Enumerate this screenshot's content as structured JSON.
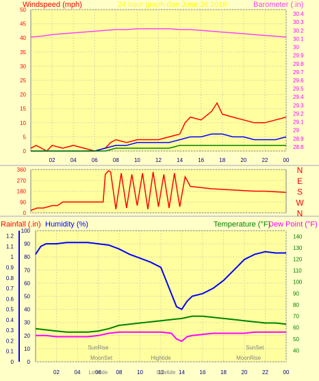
{
  "chart_data": [
    {
      "type": "line",
      "title": "24 hour graph dae  June 26 2018",
      "left_axis_label": "Windspeed (mph)",
      "right_axis_label": "Barometer (.in)",
      "x_ticks": [
        "02",
        "04",
        "06",
        "08",
        "10",
        "12",
        "14",
        "16",
        "18",
        "20",
        "22",
        "00"
      ],
      "left_ticks": [
        "0",
        "5",
        "10",
        "15",
        "20",
        "25",
        "30",
        "35",
        "40",
        "45",
        "50"
      ],
      "right_ticks": [
        "28.8",
        "28.9",
        "29",
        "29.1",
        "29.2",
        "29.3",
        "29.4",
        "29.5",
        "29.6",
        "29.7",
        "29.8",
        "29.9",
        "30",
        "30.1",
        "30.2",
        "30.3",
        "30.4"
      ],
      "left_range": [
        0,
        50
      ],
      "right_range": [
        28.75,
        30.45
      ],
      "grid": true,
      "series": [
        {
          "color": "#ff40ff",
          "axis": "right",
          "x": [
            0,
            1,
            2,
            3,
            4,
            5,
            6,
            7,
            8,
            9,
            10,
            11,
            12,
            13,
            14,
            15,
            16,
            17,
            18,
            19,
            20,
            21,
            22,
            23,
            24
          ],
          "y": [
            30.12,
            30.13,
            30.15,
            30.16,
            30.17,
            30.18,
            30.19,
            30.2,
            30.21,
            30.21,
            30.22,
            30.22,
            30.22,
            30.22,
            30.21,
            30.21,
            30.2,
            30.19,
            30.18,
            30.17,
            30.16,
            30.15,
            30.14,
            30.13,
            30.12
          ]
        },
        {
          "color": "#ff0000",
          "axis": "left",
          "x": [
            0,
            0.5,
            1,
            1.5,
            2,
            3,
            4,
            5,
            6,
            7,
            7.5,
            8,
            9,
            10,
            11,
            12,
            13,
            14,
            14.5,
            15,
            16,
            17,
            17.5,
            18,
            19,
            20,
            21,
            22,
            23,
            24
          ],
          "y": [
            1,
            2,
            1,
            0,
            2,
            1,
            2,
            1,
            0,
            1,
            3,
            4,
            3,
            4,
            4,
            4,
            5,
            6,
            10,
            12,
            11,
            14,
            17,
            13,
            12,
            11,
            10,
            10,
            11,
            12
          ]
        },
        {
          "color": "#0000ff",
          "axis": "left",
          "x": [
            0,
            1,
            2,
            3,
            4,
            5,
            6,
            7,
            8,
            9,
            10,
            11,
            12,
            13,
            14,
            15,
            16,
            17,
            18,
            19,
            20,
            21,
            22,
            23,
            24
          ],
          "y": [
            0,
            0,
            0,
            0,
            0,
            0,
            0,
            1,
            2,
            2,
            3,
            3,
            3,
            3,
            4,
            5,
            5,
            6,
            6,
            5,
            5,
            4,
            4,
            4,
            5
          ]
        },
        {
          "color": "#008000",
          "axis": "left",
          "x": [
            0,
            1,
            2,
            3,
            4,
            5,
            6,
            7,
            8,
            9,
            10,
            11,
            12,
            13,
            14,
            15,
            16,
            17,
            18,
            19,
            20,
            21,
            22,
            23,
            24
          ],
          "y": [
            0,
            0,
            0,
            0,
            0,
            0,
            0,
            0,
            1,
            1,
            1,
            1,
            1,
            1,
            2,
            2,
            2,
            2,
            2,
            2,
            2,
            2,
            2,
            2,
            2
          ]
        }
      ]
    },
    {
      "type": "line",
      "left_ticks": [
        "0",
        "90",
        "180",
        "270",
        "360"
      ],
      "right_ticks": [
        "N",
        "W",
        "S",
        "E",
        "N"
      ],
      "left_range": [
        0,
        360
      ],
      "grid": true,
      "series": [
        {
          "color": "#ff0000",
          "x": [
            0,
            0.6,
            1.2,
            2,
            2.5,
            3,
            4,
            5,
            6,
            6.8,
            7,
            7.3,
            7.5,
            8,
            8.5,
            9,
            9.5,
            10,
            10.5,
            11,
            11.5,
            12,
            12.5,
            13,
            13.5,
            14,
            14.5,
            15,
            16,
            17,
            18,
            19,
            20,
            21,
            22,
            23,
            24
          ],
          "y": [
            20,
            40,
            40,
            60,
            60,
            90,
            90,
            90,
            90,
            90,
            320,
            350,
            340,
            30,
            330,
            40,
            320,
            60,
            330,
            30,
            340,
            50,
            320,
            40,
            330,
            50,
            300,
            220,
            210,
            200,
            195,
            190,
            185,
            180,
            180,
            175,
            170
          ]
        }
      ]
    },
    {
      "type": "line",
      "left_axis_label_1": "Rainfall (.in)",
      "left_axis_label_2": "Humidity (%)",
      "right_axis_label_1": "Temperature (°F)",
      "right_axis_label_2": "Dew Point (°F)",
      "x_ticks": [
        "02",
        "04",
        "06",
        "08",
        "10",
        "12",
        "14",
        "16",
        "18",
        "20",
        "22",
        "00"
      ],
      "rain_ticks": [
        "0",
        "0.1",
        "0.2",
        "0.3",
        "0.4",
        "0.5",
        "0.6",
        "0.7",
        "0.8",
        "0.9",
        "1",
        "1.1",
        "1.2"
      ],
      "hum_ticks": [
        "0",
        "10",
        "20",
        "30",
        "40",
        "50",
        "60",
        "70",
        "80",
        "90",
        "100"
      ],
      "temp_ticks": [
        "40",
        "50",
        "60",
        "70",
        "80",
        "90",
        "100",
        "110",
        "120",
        "130",
        "140"
      ],
      "hum_range": [
        0,
        100
      ],
      "temp_range": [
        30,
        145
      ],
      "grid": true,
      "series": [
        {
          "color": "#0000ff",
          "axis": "humidity",
          "x": [
            0,
            0.5,
            1,
            2,
            3,
            4,
            5,
            6,
            7,
            8,
            9,
            10,
            11,
            12,
            13,
            13.5,
            14,
            14.5,
            15,
            16,
            17,
            18,
            19,
            20,
            21,
            22,
            23,
            24
          ],
          "y": [
            82,
            88,
            90,
            90,
            91,
            91,
            91,
            90,
            89,
            86,
            82,
            79,
            76,
            72,
            52,
            42,
            40,
            46,
            50,
            52,
            56,
            62,
            70,
            78,
            82,
            84,
            83,
            83
          ]
        },
        {
          "color": "#008000",
          "axis": "temperature",
          "x": [
            0,
            1,
            2,
            3,
            4,
            5,
            6,
            7,
            8,
            9,
            10,
            11,
            12,
            13,
            14,
            15,
            16,
            17,
            18,
            19,
            20,
            21,
            22,
            23,
            24
          ],
          "y": [
            59,
            58,
            57,
            56,
            56,
            56,
            57,
            59,
            62,
            63,
            64,
            65,
            66,
            67,
            68,
            70,
            70,
            69,
            68,
            67,
            66,
            65,
            64,
            64,
            63
          ]
        },
        {
          "color": "#ff00ff",
          "axis": "temperature",
          "x": [
            0,
            1,
            2,
            3,
            4,
            5,
            6,
            7,
            8,
            9,
            10,
            11,
            12,
            13,
            13.5,
            14,
            14.5,
            15,
            16,
            17,
            18,
            19,
            20,
            21,
            22,
            23,
            24
          ],
          "y": [
            53,
            53,
            52,
            52,
            52,
            52,
            53,
            55,
            56,
            56,
            56,
            56,
            56,
            55,
            50,
            48,
            52,
            53,
            54,
            55,
            55,
            55,
            55,
            56,
            56,
            56,
            56
          ]
        }
      ],
      "markers": [
        {
          "label": "SunRise",
          "hour": 6.0,
          "row": "upper"
        },
        {
          "label": "SunSet",
          "hour": 21.0,
          "row": "upper"
        },
        {
          "label": "MoonSet",
          "hour": 6.3,
          "row": "middle"
        },
        {
          "label": "Hightide",
          "hour": 12.0,
          "row": "middle"
        },
        {
          "label": "MoonRise",
          "hour": 20.4,
          "row": "middle"
        },
        {
          "label": "Lowtide",
          "hour": 6.0,
          "row": "lower"
        },
        {
          "label": "Lowtide",
          "hour": 12.5,
          "row": "lower"
        }
      ]
    }
  ]
}
